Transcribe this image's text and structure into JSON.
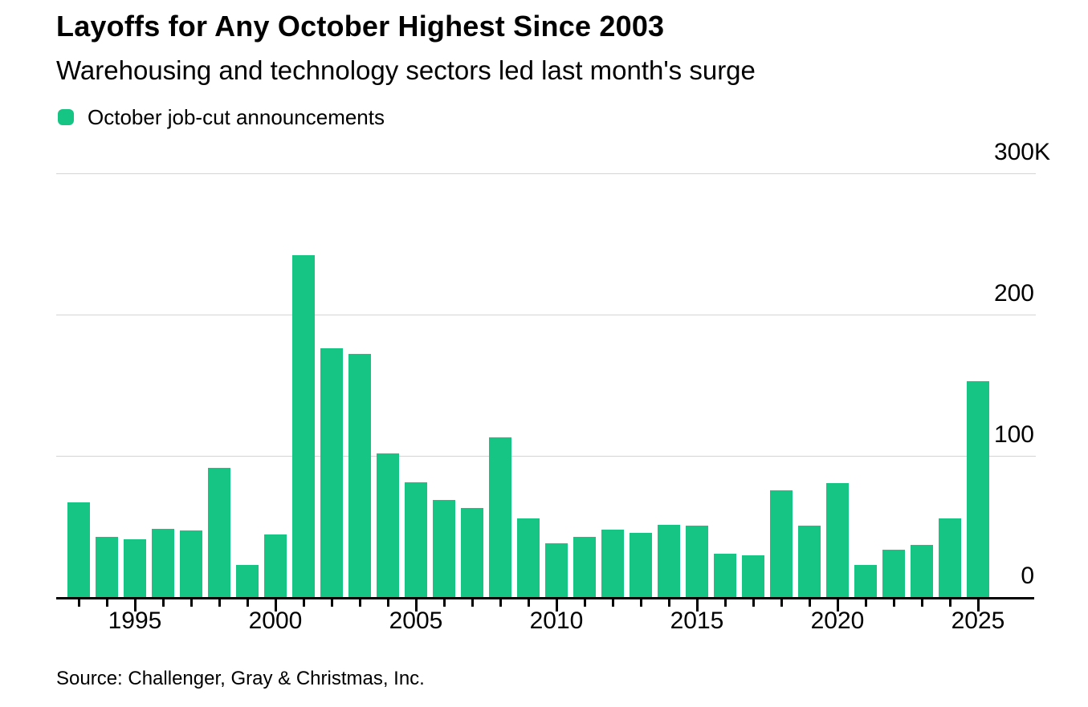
{
  "footer": {
    "source": "Source: Challenger, Gray & Christmas, Inc."
  },
  "theme": {
    "bar_color": "#16c484",
    "gridline_color": "#d4d4d4",
    "axis_color": "#000000",
    "text_color": "#000000",
    "background_color": "#ffffff"
  },
  "chart_data": {
    "type": "bar",
    "title": "Layoffs for Any October Highest Since 2003",
    "subtitle": "Warehousing and technology sectors led last month's surge",
    "legend_label": "October job-cut announcements",
    "legend_position": "top-left",
    "unit": "thousands of job cuts",
    "xlabel": "",
    "ylabel": "",
    "grid": "horizontal",
    "ylim": [
      0,
      300
    ],
    "years": [
      1993,
      1994,
      1995,
      1996,
      1997,
      1998,
      1999,
      2000,
      2001,
      2002,
      2003,
      2004,
      2005,
      2006,
      2007,
      2008,
      2009,
      2010,
      2011,
      2012,
      2013,
      2014,
      2015,
      2016,
      2017,
      2018,
      2019,
      2020,
      2021,
      2022,
      2023,
      2024,
      2025
    ],
    "values": [
      67,
      42.4,
      41.2,
      48.1,
      47.2,
      91.5,
      23,
      44.2,
      242.2,
      176,
      171.9,
      101.8,
      81.3,
      69,
      63.1,
      112.9,
      55.7,
      38,
      42.8,
      47.7,
      45.7,
      51.2,
      50.5,
      30.7,
      29.8,
      75.6,
      50.3,
      80.7,
      22.8,
      33.8,
      36.8,
      55.6,
      153.1
    ],
    "y_ticks": [
      {
        "text": "300",
        "suffix": "K",
        "value": 300
      },
      {
        "text": "200",
        "suffix": "",
        "value": 200
      },
      {
        "text": "100",
        "suffix": "",
        "value": 100
      },
      {
        "text": "0",
        "suffix": "",
        "value": 0
      }
    ],
    "x_tick_labels": [
      "1995",
      "2000",
      "2005",
      "2010",
      "2015",
      "2020",
      "2025"
    ]
  }
}
